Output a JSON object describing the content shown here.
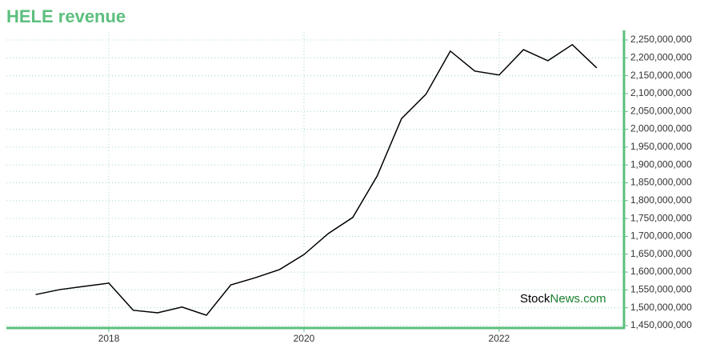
{
  "chart_data": {
    "type": "line",
    "title": "HELE revenue",
    "x": [
      2017.25,
      2017.5,
      2017.75,
      2018.0,
      2018.25,
      2018.5,
      2018.75,
      2019.0,
      2019.25,
      2019.5,
      2019.75,
      2020.0,
      2020.25,
      2020.5,
      2020.75,
      2021.0,
      2021.25,
      2021.5,
      2021.75,
      2022.0,
      2022.25,
      2022.5,
      2022.75,
      2023.0
    ],
    "values": [
      1537000000,
      1551000000,
      1560000000,
      1569000000,
      1493000000,
      1486000000,
      1502000000,
      1479000000,
      1564000000,
      1584000000,
      1607000000,
      1649000000,
      1708000000,
      1753000000,
      1869000000,
      2030000000,
      2098000000,
      2219000000,
      2163000000,
      2152000000,
      2223000000,
      2192000000,
      2237000000,
      2172000000
    ],
    "color": "#000000",
    "xlim": [
      2016.95,
      2023.28
    ],
    "xticks": [
      2018,
      2020,
      2022
    ],
    "ylim": [
      1450000000,
      2250000000
    ],
    "yticks": [
      {
        "value": 1450000000,
        "label": "1,450,000,000"
      },
      {
        "value": 1500000000,
        "label": "1,500,000,000"
      },
      {
        "value": 1550000000,
        "label": "1,550,000,000"
      },
      {
        "value": 1600000000,
        "label": "1,600,000,000"
      },
      {
        "value": 1650000000,
        "label": "1,650,000,000"
      },
      {
        "value": 1700000000,
        "label": "1,700,000,000"
      },
      {
        "value": 1750000000,
        "label": "1,750,000,000"
      },
      {
        "value": 1800000000,
        "label": "1,800,000,000"
      },
      {
        "value": 1850000000,
        "label": "1,850,000,000"
      },
      {
        "value": 1900000000,
        "label": "1,900,000,000"
      },
      {
        "value": 1950000000,
        "label": "1,950,000,000"
      },
      {
        "value": 2000000000,
        "label": "2,000,000,000"
      },
      {
        "value": 2050000000,
        "label": "2,050,000,000"
      },
      {
        "value": 2100000000,
        "label": "2,100,000,000"
      },
      {
        "value": 2150000000,
        "label": "2,150,000,000"
      },
      {
        "value": 2200000000,
        "label": "2,200,000,000"
      },
      {
        "value": 2250000000,
        "label": "2,250,000,000"
      }
    ],
    "grid": true,
    "watermark": {
      "part1": "Stock",
      "part2": "News.com"
    }
  }
}
